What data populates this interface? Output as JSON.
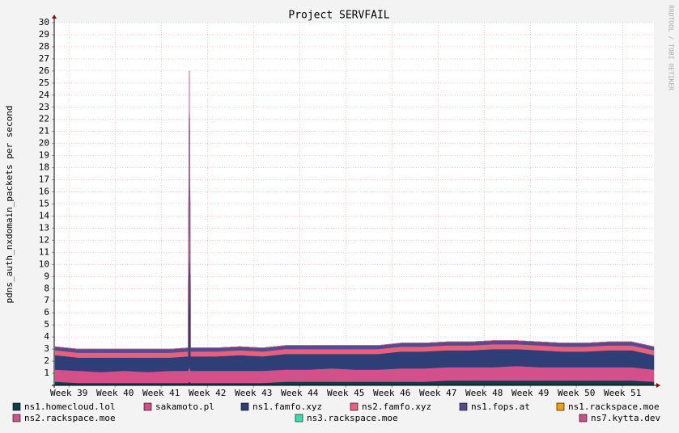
{
  "chart_data": {
    "type": "stacked-area",
    "title": "Project SERVFAIL",
    "y_label": "pdns_auth_nxdomain_packets per second",
    "watermark": "RRDTOOL / TOBI OETIKER",
    "grid": true,
    "x": [
      38.7,
      39.2,
      39.7,
      40.2,
      40.7,
      41.2,
      41.58,
      41.61,
      41.64,
      42.2,
      42.7,
      43.2,
      43.7,
      44.2,
      44.7,
      45.2,
      45.7,
      46.2,
      46.7,
      47.2,
      47.7,
      48.2,
      48.7,
      49.2,
      49.7,
      50.2,
      50.7,
      51.2,
      51.68
    ],
    "xlim": [
      38.68,
      51.68
    ],
    "xticks": [
      {
        "value": 39,
        "label": "Week 39"
      },
      {
        "value": 40,
        "label": "Week 40"
      },
      {
        "value": 41,
        "label": "Week 41"
      },
      {
        "value": 42,
        "label": "Week 42"
      },
      {
        "value": 43,
        "label": "Week 43"
      },
      {
        "value": 44,
        "label": "Week 44"
      },
      {
        "value": 45,
        "label": "Week 45"
      },
      {
        "value": 46,
        "label": "Week 46"
      },
      {
        "value": 47,
        "label": "Week 47"
      },
      {
        "value": 48,
        "label": "Week 48"
      },
      {
        "value": 49,
        "label": "Week 49"
      },
      {
        "value": 50,
        "label": "Week 50"
      },
      {
        "value": 51,
        "label": "Week 51"
      }
    ],
    "ylim": [
      0,
      30
    ],
    "yticks": [
      1,
      2,
      3,
      4,
      5,
      6,
      7,
      8,
      9,
      10,
      11,
      12,
      13,
      14,
      15,
      16,
      17,
      18,
      19,
      20,
      21,
      22,
      23,
      24,
      25,
      26,
      27,
      28,
      29,
      30
    ],
    "series": [
      {
        "name": "ns1.homecloud.lol",
        "color": "#0f3d4c",
        "values": [
          0.3,
          0.2,
          0.2,
          0.2,
          0.2,
          0.2,
          0.2,
          0.3,
          0.2,
          0.2,
          0.2,
          0.2,
          0.3,
          0.3,
          0.3,
          0.3,
          0.3,
          0.3,
          0.3,
          0.4,
          0.4,
          0.4,
          0.4,
          0.4,
          0.4,
          0.4,
          0.4,
          0.4,
          0.3
        ]
      },
      {
        "name": "sakamoto.pl",
        "color": "#d4508a",
        "values": [
          1.0,
          1.0,
          0.9,
          1.0,
          0.9,
          1.0,
          1.0,
          1.2,
          1.0,
          1.0,
          1.0,
          1.0,
          1.0,
          1.0,
          1.1,
          1.0,
          1.0,
          1.1,
          1.1,
          1.1,
          1.1,
          1.1,
          1.2,
          1.1,
          1.1,
          1.1,
          1.1,
          1.1,
          1.0
        ]
      },
      {
        "name": "ns1.famfo.xyz",
        "color": "#2e3f78",
        "values": [
          1.2,
          1.1,
          1.2,
          1.1,
          1.2,
          1.1,
          1.2,
          13.0,
          1.2,
          1.2,
          1.3,
          1.2,
          1.3,
          1.3,
          1.2,
          1.3,
          1.3,
          1.4,
          1.4,
          1.4,
          1.4,
          1.5,
          1.4,
          1.4,
          1.3,
          1.3,
          1.4,
          1.4,
          1.2
        ]
      },
      {
        "name": "ns2.famfo.xyz",
        "color": "#e8607c",
        "values": [
          0.4,
          0.4,
          0.4,
          0.4,
          0.4,
          0.4,
          0.4,
          0.5,
          0.4,
          0.4,
          0.4,
          0.4,
          0.4,
          0.4,
          0.4,
          0.4,
          0.4,
          0.4,
          0.4,
          0.4,
          0.4,
          0.4,
          0.4,
          0.4,
          0.4,
          0.4,
          0.4,
          0.4,
          0.4
        ]
      },
      {
        "name": "ns1.fops.at",
        "color": "#5a4a8c",
        "values": [
          0.3,
          0.3,
          0.3,
          0.3,
          0.3,
          0.3,
          0.3,
          11.0,
          0.3,
          0.3,
          0.3,
          0.3,
          0.3,
          0.3,
          0.3,
          0.3,
          0.3,
          0.3,
          0.3,
          0.3,
          0.3,
          0.3,
          0.3,
          0.3,
          0.3,
          0.3,
          0.3,
          0.3,
          0.3
        ]
      },
      {
        "name": "ns1.rackspace.moe",
        "color": "#f0a000",
        "values": [
          0,
          0,
          0,
          0,
          0,
          0,
          0,
          0,
          0,
          0,
          0,
          0,
          0,
          0,
          0,
          0,
          0,
          0,
          0,
          0,
          0,
          0,
          0,
          0,
          0,
          0,
          0,
          0,
          0
        ]
      },
      {
        "name": "ns2.rackspace.moe",
        "color": "#cc5590",
        "values": [
          0,
          0,
          0,
          0,
          0,
          0,
          0,
          0,
          0,
          0,
          0,
          0,
          0,
          0,
          0,
          0,
          0,
          0,
          0,
          0,
          0,
          0,
          0,
          0,
          0,
          0,
          0,
          0,
          0
        ]
      },
      {
        "name": "ns3.rackspace.moe",
        "color": "#33e0b0",
        "values": [
          0,
          0,
          0,
          0,
          0,
          0,
          0,
          0,
          0,
          0,
          0,
          0,
          0,
          0,
          0,
          0,
          0,
          0,
          0,
          0,
          0,
          0,
          0,
          0,
          0,
          0,
          0,
          0,
          0
        ]
      },
      {
        "name": "ns7.kytta.dev",
        "color": "#c9508a",
        "values": [
          0,
          0,
          0,
          0,
          0,
          0,
          0,
          0,
          0,
          0,
          0,
          0,
          0,
          0,
          0,
          0,
          0,
          0,
          0,
          0,
          0,
          0,
          0,
          0,
          0,
          0,
          0,
          0,
          0
        ]
      }
    ]
  }
}
